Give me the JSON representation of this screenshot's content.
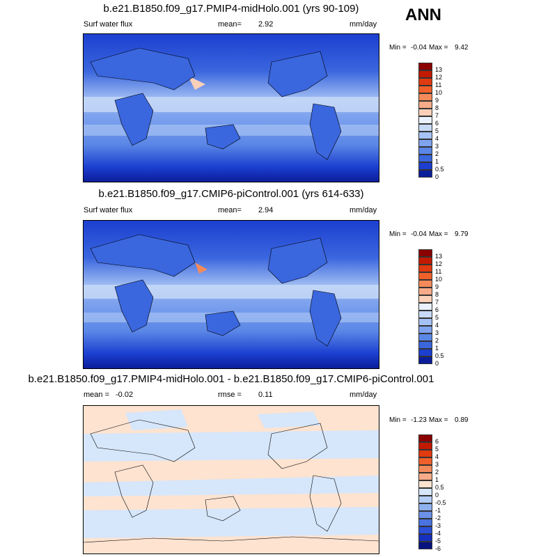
{
  "season": "ANN",
  "panels": [
    {
      "title": "b.e21.B1850.f09_g17.PMIP4-midHolo.001 (yrs 90-109)",
      "left_label": "Surf water flux",
      "stat_label": "mean=",
      "stat_value": "2.92",
      "units": "mm/day",
      "min_label": "Min =",
      "min_value": "-0.04",
      "max_label": "Max =",
      "max_value": "9.42",
      "colorbar_levels": [
        "13",
        "12",
        "11",
        "10",
        "9",
        "8",
        "7",
        "6",
        "5",
        "4",
        "3",
        "2",
        "1",
        "0.5",
        "0"
      ]
    },
    {
      "title": "b.e21.B1850.f09_g17.CMIP6-piControl.001 (yrs 614-633)",
      "left_label": "Surf water flux",
      "stat_label": "mean=",
      "stat_value": "2.94",
      "units": "mm/day",
      "min_label": "Min =",
      "min_value": "-0.04",
      "max_label": "Max =",
      "max_value": "9.79",
      "colorbar_levels": [
        "13",
        "12",
        "11",
        "10",
        "9",
        "8",
        "7",
        "6",
        "5",
        "4",
        "3",
        "2",
        "1",
        "0.5",
        "0"
      ]
    },
    {
      "title": "b.e21.B1850.f09_g17.PMIP4-midHolo.001 - b.e21.B1850.f09_g17.CMIP6-piControl.001",
      "left_label": "mean =",
      "left_value": "-0.02",
      "stat_label": "rmse =",
      "stat_value": "0.11",
      "units": "mm/day",
      "min_label": "Min =",
      "min_value": "-1.23",
      "max_label": "Max =",
      "max_value": "0.89",
      "colorbar_levels": [
        "6",
        "5",
        "4",
        "3",
        "2",
        "1",
        "0.5",
        "0",
        "-0.5",
        "-1",
        "-2",
        "-3",
        "-4",
        "-5",
        "-6"
      ]
    }
  ],
  "colors": {
    "field_scale": [
      "#8b0000",
      "#c21a00",
      "#e03a10",
      "#f0602a",
      "#f48a5a",
      "#f7ab88",
      "#fbd0b8",
      "#eaf2ff",
      "#c8daf8",
      "#a6c2f4",
      "#7fa3ee",
      "#5a86e6",
      "#3a66de",
      "#1c3fd0",
      "#0b1e9a"
    ],
    "diff_scale": [
      "#8b0000",
      "#c21a00",
      "#e03a10",
      "#f0602a",
      "#f48a5a",
      "#f7ab88",
      "#fde3d0",
      "#d6e6fb",
      "#b4cdf6",
      "#8eb0ef",
      "#6a90e8",
      "#4a72e0",
      "#2b4fd6",
      "#1530bc",
      "#07127f"
    ]
  }
}
